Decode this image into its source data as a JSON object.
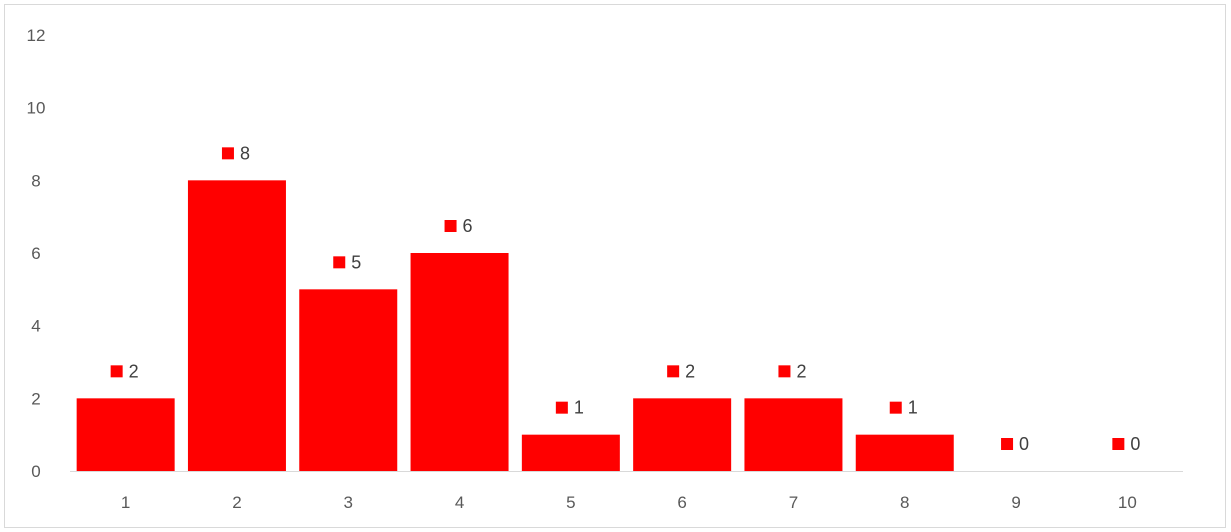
{
  "chart_data": {
    "type": "bar",
    "title": "",
    "xlabel": "",
    "ylabel": "",
    "categories": [
      "1",
      "2",
      "3",
      "4",
      "5",
      "6",
      "7",
      "8",
      "9",
      "10"
    ],
    "values": [
      2,
      8,
      5,
      6,
      1,
      2,
      2,
      1,
      0,
      0
    ],
    "ylim": [
      0,
      12
    ],
    "yticks": [
      "0",
      "2",
      "4",
      "6",
      "8",
      "10",
      "12"
    ],
    "grid": false,
    "legend": "none",
    "data_labels": true,
    "bar_color": "#ff0000",
    "label_marker_color": "#ff0000"
  }
}
